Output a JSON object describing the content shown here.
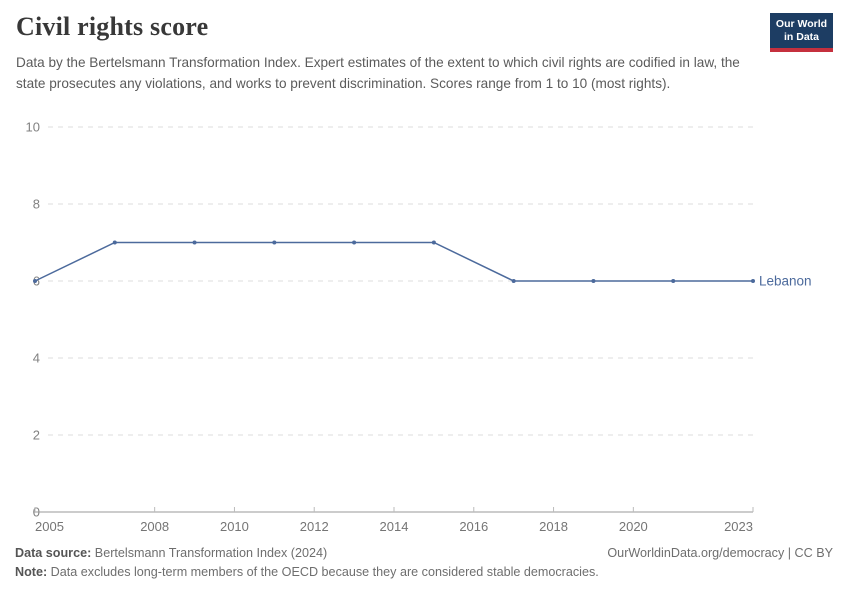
{
  "header": {
    "title": "Civil rights score",
    "subtitle": "Data by the Bertelsmann Transformation Index. Expert estimates of the extent to which civil rights are codified in law, the state prosecutes any violations, and works to prevent discrimination. Scores range from 1 to 10 (most rights).",
    "logo": {
      "line1": "Our World",
      "line2": "in Data",
      "bg_color": "#1d3d63",
      "accent_color": "#c5303e"
    }
  },
  "chart_data": {
    "type": "line",
    "title": "Civil rights score",
    "x": [
      2005,
      2007,
      2009,
      2011,
      2013,
      2015,
      2017,
      2019,
      2021,
      2023
    ],
    "series": [
      {
        "name": "Lebanon",
        "values": [
          6,
          7,
          7,
          7,
          7,
          7,
          6,
          6,
          6,
          6
        ],
        "color": "#4c6a9c"
      }
    ],
    "xlabel": "",
    "ylabel": "",
    "xlim": [
      2005,
      2023
    ],
    "ylim": [
      0,
      10
    ],
    "x_ticks": [
      2005,
      2008,
      2010,
      2012,
      2014,
      2016,
      2018,
      2020,
      2023
    ],
    "y_ticks": [
      0,
      2,
      4,
      6,
      8,
      10
    ],
    "grid": "horizontal-dashed",
    "legend_position": "end-of-line-label",
    "colors": {
      "gridline": "#dcdcdc",
      "axis_line": "#999999",
      "axis_tick": "#bbbbbb",
      "y_tick_label": "#818181",
      "x_tick_label": "#757575"
    }
  },
  "footer": {
    "source_label": "Data source:",
    "source_text": " Bertelsmann Transformation Index (2024)",
    "attribution": "OurWorldinData.org/democracy | CC BY",
    "note_label": "Note:",
    "note_text": " Data excludes long-term members of the OECD because they are considered stable democracies."
  }
}
